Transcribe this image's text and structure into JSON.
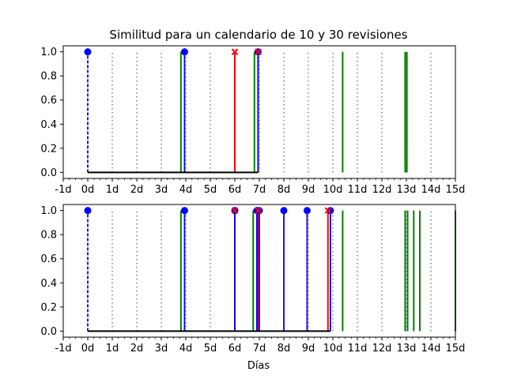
{
  "chart_data": {
    "type": "stem",
    "title": "Similitud para un calendario de 10 y 30 revisiones",
    "xlabel": "Días",
    "xlim": [
      -1,
      15
    ],
    "ylim": [
      -0.05,
      1.05
    ],
    "x_tick_labels": [
      "-1d",
      "0d",
      "1d",
      "2d",
      "3d",
      "4d",
      "5d",
      "6d",
      "7d",
      "8d",
      "9d",
      "10d",
      "11d",
      "12d",
      "13d",
      "14d",
      "15d"
    ],
    "y_tick_labels": [
      "0.0",
      "0.2",
      "0.4",
      "0.6",
      "0.8",
      "1.0"
    ],
    "colors": {
      "revision": "#0000ff",
      "event": "#ff0000",
      "green": "#008000",
      "dotted": "#808080",
      "baseline": "#000000"
    },
    "subplots": [
      {
        "name": "top",
        "dotted_x": [
          1,
          2,
          3,
          4,
          5,
          6,
          7,
          8,
          9,
          10,
          11,
          12,
          13,
          14
        ],
        "green_x": [
          3.8,
          6.8,
          10.4,
          12.95,
          13.02
        ],
        "blue_points": [
          0,
          3.95,
          6.95
        ],
        "red_x_points": [
          6.0,
          6.95
        ],
        "baseline_x": [
          0,
          6.95
        ],
        "blue_dashed": [
          0
        ]
      },
      {
        "name": "bottom",
        "dotted_x": [
          1,
          2,
          3,
          4,
          5,
          6,
          7,
          8,
          9,
          10,
          11,
          12,
          13,
          14
        ],
        "green_x": [
          3.8,
          6.75,
          10.4,
          12.95,
          13.05,
          13.3,
          13.55,
          15.0
        ],
        "blue_points": [
          0,
          3.95,
          6.0,
          6.9,
          7.0,
          8.0,
          8.95,
          9.9
        ],
        "red_x_points": [
          6.0,
          6.95,
          9.8
        ],
        "baseline_x": [
          0,
          9.9
        ],
        "blue_dashed": [
          0
        ]
      }
    ]
  }
}
